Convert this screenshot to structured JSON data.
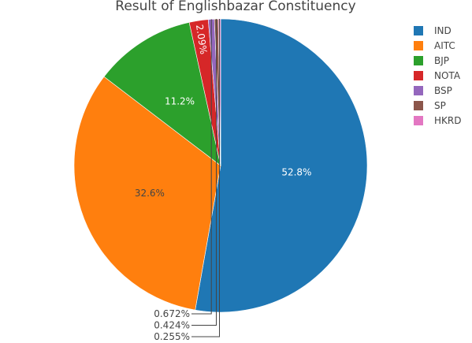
{
  "chart_data": {
    "type": "pie",
    "title": "Result of Englishbazar Constituency",
    "slices": [
      {
        "name": "IND",
        "value": 52.8,
        "label": "52.8%",
        "color": "#1f77b4"
      },
      {
        "name": "AITC",
        "value": 32.6,
        "label": "32.6%",
        "color": "#ff7f0e"
      },
      {
        "name": "BJP",
        "value": 11.2,
        "label": "11.2%",
        "color": "#2ca02c"
      },
      {
        "name": "NOTA",
        "value": 2.09,
        "label": "2.09%",
        "color": "#d62728"
      },
      {
        "name": "BSP",
        "value": 0.672,
        "label": "0.672%",
        "color": "#9467bd"
      },
      {
        "name": "SP",
        "value": 0.424,
        "label": "0.424%",
        "color": "#8c564b"
      },
      {
        "name": "HKRD",
        "value": 0.255,
        "label": "0.255%",
        "color": "#e377c2"
      }
    ],
    "legend_position": "top-right"
  }
}
